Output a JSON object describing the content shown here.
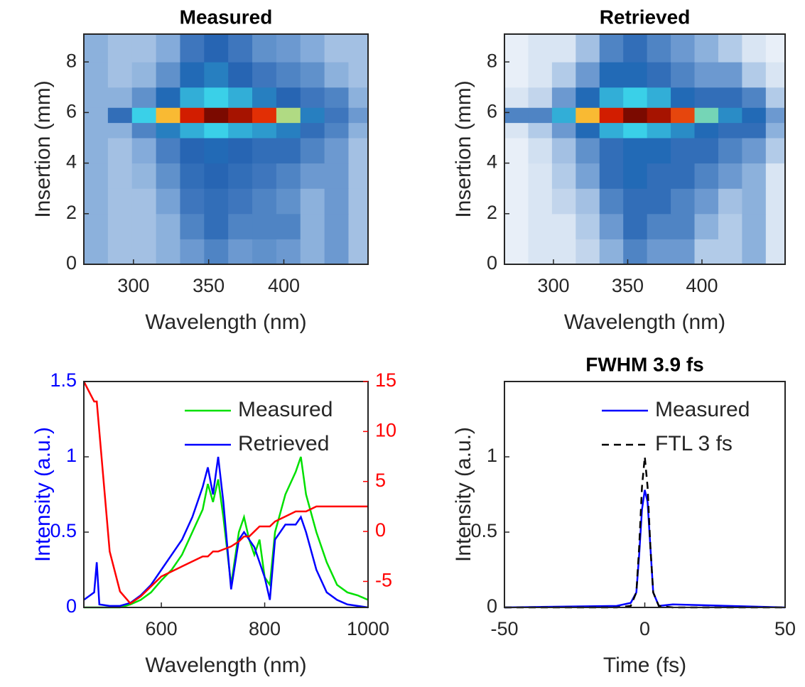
{
  "chart_data": [
    {
      "type": "heatmap",
      "title": "Measured",
      "xlabel": "Wavelength (nm)",
      "ylabel": "Insertion (mm)",
      "xlim": [
        267,
        456
      ],
      "ylim": [
        0,
        9.1
      ],
      "xticks": [
        300,
        350,
        400
      ],
      "yticks": [
        0,
        2,
        4,
        6,
        8
      ],
      "colormap": [
        "#ffffff",
        "#7fa8d8",
        "#1f5fb0",
        "#3ad0e8",
        "#ffe040",
        "#e02000",
        "#500000"
      ],
      "xbins": [
        267,
        283,
        299,
        315,
        331,
        347,
        363,
        379,
        395,
        411,
        427,
        443,
        456
      ],
      "ybins": [
        0,
        1,
        2,
        3,
        4,
        5,
        5.6,
        6.2,
        7,
        8,
        9.1
      ],
      "z": [
        [
          0.15,
          0.12,
          0.12,
          0.15,
          0.2,
          0.25,
          0.2,
          0.22,
          0.2,
          0.15,
          0.2,
          0.12
        ],
        [
          0.15,
          0.12,
          0.12,
          0.15,
          0.25,
          0.3,
          0.25,
          0.25,
          0.25,
          0.15,
          0.2,
          0.12
        ],
        [
          0.15,
          0.12,
          0.12,
          0.18,
          0.28,
          0.3,
          0.28,
          0.25,
          0.22,
          0.15,
          0.2,
          0.12
        ],
        [
          0.15,
          0.12,
          0.14,
          0.22,
          0.3,
          0.32,
          0.3,
          0.28,
          0.25,
          0.2,
          0.2,
          0.12
        ],
        [
          0.15,
          0.12,
          0.16,
          0.26,
          0.32,
          0.35,
          0.32,
          0.3,
          0.3,
          0.25,
          0.2,
          0.12
        ],
        [
          0.15,
          0.15,
          0.25,
          0.38,
          0.45,
          0.5,
          0.45,
          0.42,
          0.38,
          0.3,
          0.25,
          0.15
        ],
        [
          0.15,
          0.3,
          0.5,
          0.7,
          0.85,
          0.95,
          0.9,
          0.82,
          0.6,
          0.38,
          0.28,
          0.2
        ],
        [
          0.15,
          0.15,
          0.22,
          0.35,
          0.45,
          0.5,
          0.45,
          0.38,
          0.32,
          0.28,
          0.25,
          0.15
        ],
        [
          0.15,
          0.12,
          0.14,
          0.22,
          0.35,
          0.38,
          0.32,
          0.28,
          0.25,
          0.22,
          0.15,
          0.12
        ],
        [
          0.15,
          0.12,
          0.12,
          0.16,
          0.28,
          0.32,
          0.28,
          0.22,
          0.2,
          0.16,
          0.12,
          0.12
        ]
      ]
    },
    {
      "type": "heatmap",
      "title": "Retrieved",
      "xlabel": "Wavelength (nm)",
      "ylabel": "Insertion (mm)",
      "xlim": [
        267,
        456
      ],
      "ylim": [
        0,
        9.1
      ],
      "xticks": [
        300,
        350,
        400
      ],
      "yticks": [
        0,
        2,
        4,
        6,
        8
      ],
      "colormap": [
        "#ffffff",
        "#7fa8d8",
        "#1f5fb0",
        "#3ad0e8",
        "#ffe040",
        "#e02000",
        "#500000"
      ],
      "xbins": [
        267,
        283,
        299,
        315,
        331,
        347,
        363,
        379,
        395,
        411,
        427,
        443,
        456
      ],
      "ybins": [
        0,
        1,
        2,
        3,
        4,
        5,
        5.6,
        6.2,
        7,
        8,
        9.1
      ],
      "z": [
        [
          0.03,
          0.05,
          0.05,
          0.08,
          0.15,
          0.25,
          0.2,
          0.2,
          0.1,
          0.1,
          0.15,
          0.05
        ],
        [
          0.03,
          0.05,
          0.05,
          0.1,
          0.2,
          0.3,
          0.25,
          0.25,
          0.15,
          0.1,
          0.15,
          0.05
        ],
        [
          0.03,
          0.05,
          0.08,
          0.12,
          0.25,
          0.3,
          0.3,
          0.25,
          0.2,
          0.12,
          0.15,
          0.05
        ],
        [
          0.03,
          0.05,
          0.1,
          0.18,
          0.3,
          0.35,
          0.3,
          0.3,
          0.25,
          0.2,
          0.15,
          0.05
        ],
        [
          0.03,
          0.06,
          0.12,
          0.22,
          0.3,
          0.35,
          0.35,
          0.3,
          0.3,
          0.25,
          0.2,
          0.1
        ],
        [
          0.05,
          0.1,
          0.2,
          0.35,
          0.45,
          0.5,
          0.45,
          0.4,
          0.35,
          0.3,
          0.3,
          0.15
        ],
        [
          0.25,
          0.25,
          0.45,
          0.7,
          0.85,
          0.95,
          0.9,
          0.8,
          0.55,
          0.4,
          0.35,
          0.2
        ],
        [
          0.05,
          0.08,
          0.2,
          0.35,
          0.45,
          0.5,
          0.45,
          0.35,
          0.3,
          0.3,
          0.25,
          0.1
        ],
        [
          0.03,
          0.05,
          0.1,
          0.2,
          0.35,
          0.35,
          0.3,
          0.25,
          0.2,
          0.2,
          0.1,
          0.05
        ],
        [
          0.03,
          0.05,
          0.05,
          0.12,
          0.25,
          0.3,
          0.25,
          0.2,
          0.15,
          0.1,
          0.05,
          0.03
        ]
      ]
    },
    {
      "type": "line",
      "xlabel": "Wavelength (nm)",
      "ylabel": "Intensity (a.u.)",
      "ylabel_color": "#0000ff",
      "y2_color": "#ff0000",
      "xlim": [
        450,
        1000
      ],
      "ylim": [
        0,
        1.5
      ],
      "y2lim": [
        -7.6,
        15
      ],
      "xticks": [
        600,
        800,
        1000
      ],
      "yticks": [
        0,
        0.5,
        1,
        1.5
      ],
      "y2ticks": [
        -5,
        0,
        5,
        10,
        15
      ],
      "x": [
        450,
        470,
        475,
        480,
        500,
        520,
        540,
        560,
        580,
        600,
        620,
        640,
        660,
        680,
        690,
        700,
        710,
        720,
        735,
        750,
        760,
        770,
        780,
        790,
        800,
        810,
        820,
        840,
        860,
        870,
        880,
        900,
        920,
        940,
        960,
        980,
        1000
      ],
      "series": [
        {
          "name": "Measured",
          "color": "#00e000",
          "values": [
            0,
            0,
            0,
            0,
            0,
            0,
            0.02,
            0.05,
            0.1,
            0.18,
            0.25,
            0.35,
            0.5,
            0.65,
            0.82,
            0.7,
            0.85,
            0.6,
            0.15,
            0.5,
            0.6,
            0.45,
            0.35,
            0.45,
            0.2,
            0.15,
            0.5,
            0.75,
            0.9,
            1.0,
            0.75,
            0.5,
            0.3,
            0.15,
            0.1,
            0.08,
            0.05
          ]
        },
        {
          "name": "Retrieved",
          "color": "#0000ff",
          "values": [
            0.05,
            0.1,
            0.3,
            0.02,
            0.01,
            0.01,
            0.03,
            0.08,
            0.15,
            0.25,
            0.35,
            0.45,
            0.6,
            0.8,
            0.93,
            0.75,
            1.0,
            0.7,
            0.12,
            0.45,
            0.5,
            0.45,
            0.4,
            0.3,
            0.2,
            0.05,
            0.45,
            0.55,
            0.55,
            0.6,
            0.5,
            0.25,
            0.1,
            0.05,
            0.02,
            0.01,
            0
          ]
        },
        {
          "color": "#ff0000",
          "axis": "y2",
          "values": [
            15,
            13,
            13,
            10,
            -2,
            -6,
            -7.2,
            -6.5,
            -5.5,
            -4.5,
            -4,
            -3.5,
            -3,
            -2.5,
            -2.5,
            -2,
            -2,
            -1.8,
            -1.5,
            -1,
            -0.5,
            -0.5,
            0,
            0.5,
            0.5,
            0.5,
            1,
            1.5,
            2,
            2,
            2,
            2.5,
            2.5,
            2.5,
            2.5,
            2.5,
            2.5
          ]
        }
      ]
    },
    {
      "type": "line",
      "title": "FWHM 3.9 fs",
      "xlabel": "Time (fs)",
      "ylabel": "Intensity (a.u.)",
      "xlim": [
        -50,
        50
      ],
      "ylim": [
        0,
        1.5
      ],
      "xticks": [
        -50,
        0,
        50
      ],
      "yticks": [
        0,
        0.5,
        1
      ],
      "x": [
        -50,
        -10,
        -5,
        -3,
        -2,
        -1,
        0,
        1,
        2,
        3,
        5,
        10,
        50
      ],
      "series": [
        {
          "name": "Measured",
          "color": "#0000ff",
          "values": [
            0,
            0.01,
            0.03,
            0.1,
            0.35,
            0.65,
            0.78,
            0.7,
            0.4,
            0.1,
            0.01,
            0.02,
            0
          ]
        },
        {
          "name": "FTL 3 fs",
          "color": "#000000",
          "linestyle": "dashed",
          "values": [
            0,
            0,
            0.01,
            0.1,
            0.4,
            0.8,
            1.0,
            0.8,
            0.4,
            0.1,
            0.01,
            0,
            0
          ]
        }
      ]
    }
  ]
}
